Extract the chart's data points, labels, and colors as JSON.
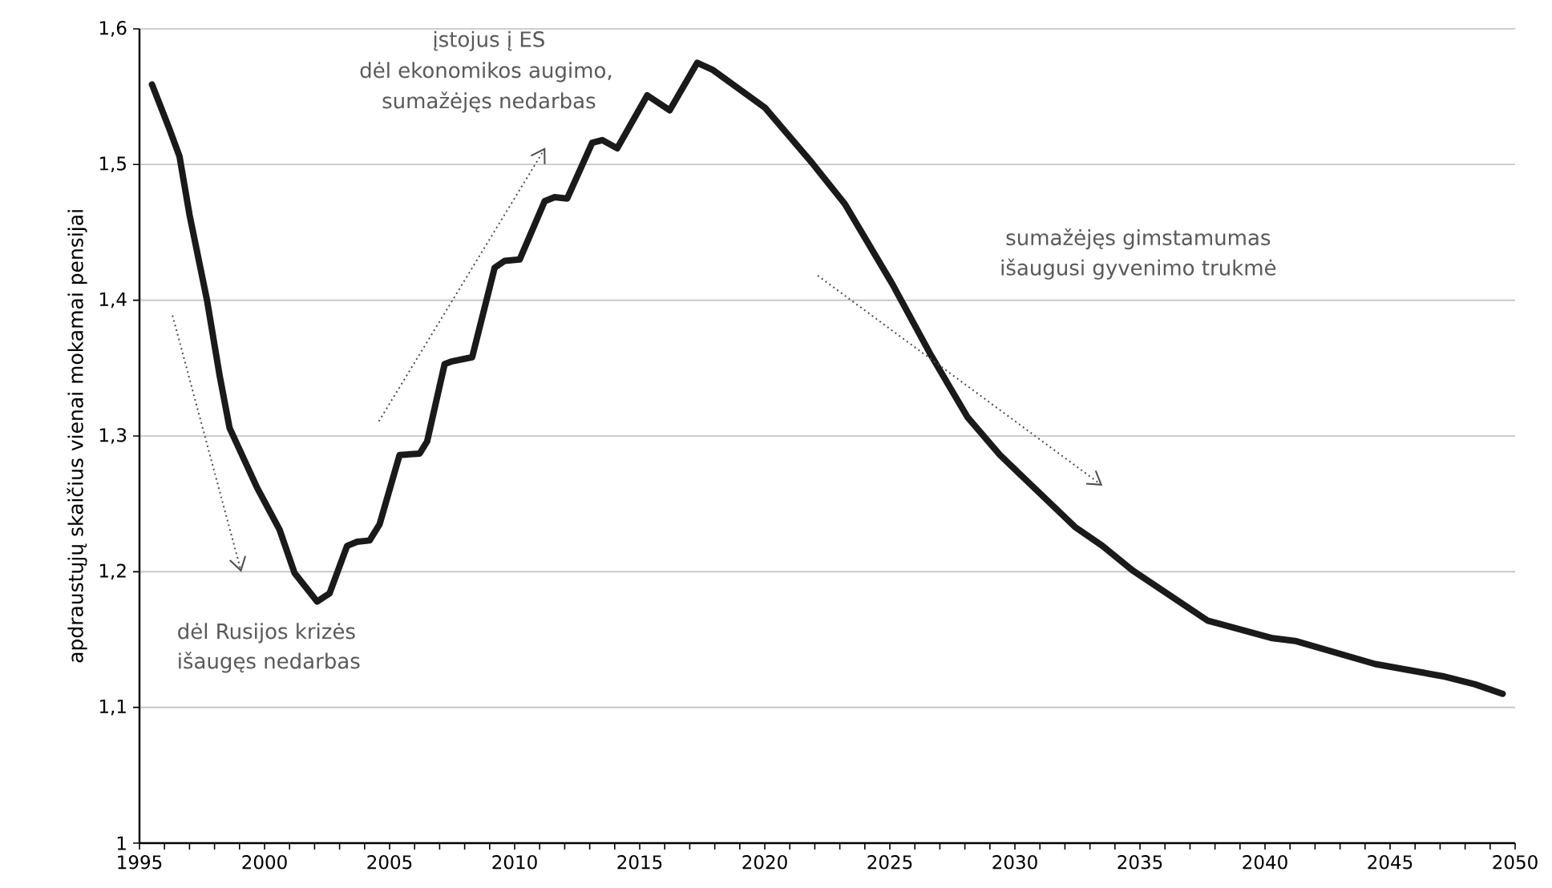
{
  "chart_data": {
    "type": "line",
    "ylabel": "apdraustųjų skaičius vienai mokamai pensijai",
    "x": [
      1995.5,
      1996.2,
      1996.6,
      1997.0,
      1997.7,
      1998.2,
      1998.6,
      1998.8,
      1999.7,
      2000.6,
      2001.2,
      2002.1,
      2002.6,
      2003.3,
      2003.7,
      2004.2,
      2004.6,
      2005.4,
      2006.2,
      2006.5,
      2007.2,
      2007.5,
      2008.3,
      2009.2,
      2009.6,
      2010.2,
      2011.2,
      2011.6,
      2012.1,
      2013.1,
      2013.5,
      2014.1,
      2015.3,
      2016.2,
      2017.3,
      2017.9,
      2020.0,
      2021.9,
      2023.2,
      2025.1,
      2026.6,
      2028.1,
      2029.4,
      2032.4,
      2033.5,
      2034.7,
      2037.7,
      2040.3,
      2041.2,
      2044.4,
      2047.1,
      2048.4,
      2049.5
    ],
    "values": [
      1.559,
      1.526,
      1.506,
      1.463,
      1.4,
      1.345,
      1.306,
      1.298,
      1.262,
      1.231,
      1.199,
      1.178,
      1.184,
      1.219,
      1.222,
      1.223,
      1.235,
      1.286,
      1.287,
      1.296,
      1.353,
      1.355,
      1.358,
      1.424,
      1.429,
      1.43,
      1.473,
      1.476,
      1.475,
      1.516,
      1.518,
      1.512,
      1.551,
      1.54,
      1.575,
      1.57,
      1.542,
      1.501,
      1.471,
      1.412,
      1.361,
      1.314,
      1.286,
      1.233,
      1.219,
      1.201,
      1.164,
      1.151,
      1.149,
      1.132,
      1.123,
      1.117,
      1.11
    ],
    "color": "#1a1a1a",
    "line_style": "solid",
    "xlim": [
      1995,
      2050
    ],
    "xticks": [
      1995,
      2000,
      2005,
      2010,
      2015,
      2020,
      2025,
      2030,
      2035,
      2040,
      2045,
      2050
    ],
    "ylim": [
      1,
      1.6
    ],
    "yticks": [
      1,
      {
        "value": 1.1,
        "label": "1,1"
      },
      {
        "value": 1.2,
        "label": "1,2"
      },
      {
        "value": 1.3,
        "label": "1,3"
      },
      {
        "value": 1.4,
        "label": "1,4"
      },
      {
        "value": 1.5,
        "label": "1,5"
      },
      {
        "value": 1.6,
        "label": "1,6"
      }
    ],
    "grid": "y",
    "annotations": [
      "įstojus į ES",
      "dėl ekonomikos augimo,",
      "sumažėjęs nedarbas",
      "sumažėjęs gimstamumas",
      "išaugusi gyvenimo trukmė",
      "dėl Rusijos krizės",
      "išaugęs nedarbas"
    ]
  }
}
